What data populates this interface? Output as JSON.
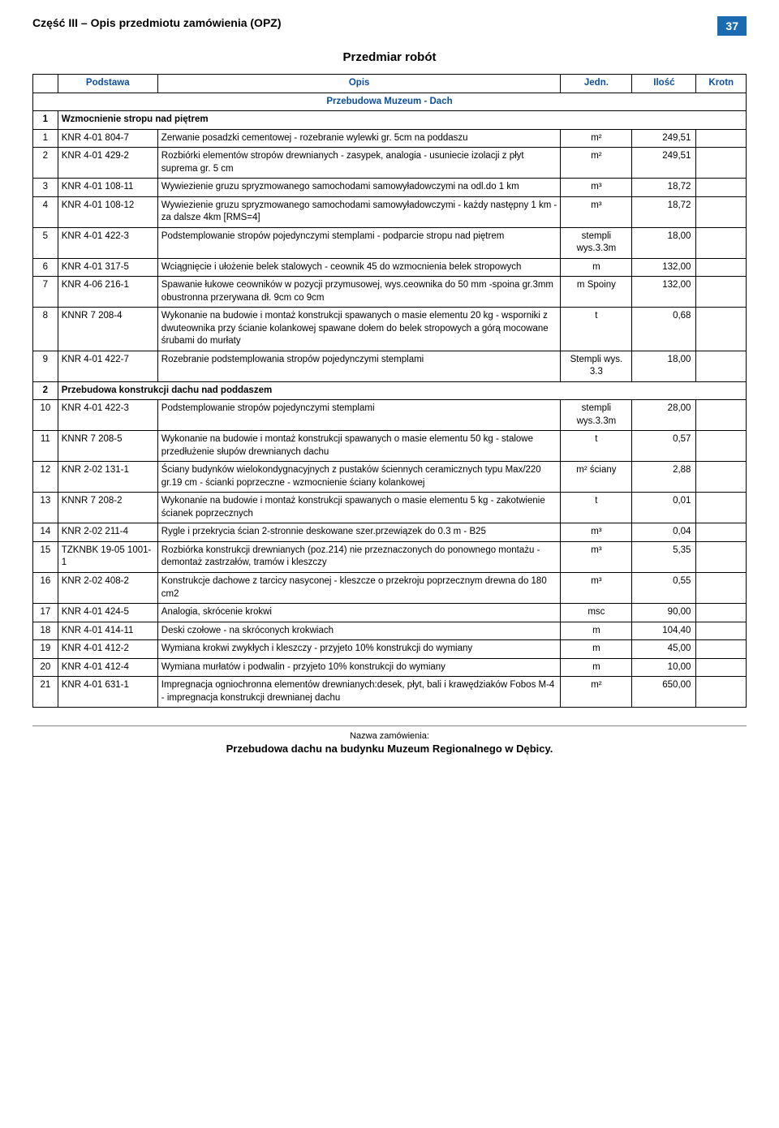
{
  "header": {
    "title": "Część III – Opis przedmiotu zamówienia (OPZ)",
    "page": "37"
  },
  "subtitle": "Przedmiar robót",
  "columns": {
    "podstawa": "Podstawa",
    "opis": "Opis",
    "jedn": "Jedn.",
    "ilosc": "Ilość",
    "krotn": "Krotn"
  },
  "main_section_title": "Przebudowa Muzeum - Dach",
  "sections": [
    {
      "num": "1",
      "title": "Wzmocnienie stropu nad piętrem",
      "rows": [
        {
          "n": "1",
          "code": "KNR 4-01 804-7",
          "desc": "Zerwanie posadzki cementowej - rozebranie wylewki gr. 5cm na poddaszu",
          "unit": "m²",
          "qty": "249,51"
        },
        {
          "n": "2",
          "code": "KNR 4-01 429-2",
          "desc": "Rozbiórki elementów stropów drewnianych - zasypek, analogia - usuniecie izolacji z płyt suprema gr. 5 cm",
          "unit": "m²",
          "qty": "249,51"
        },
        {
          "n": "3",
          "code": "KNR 4-01 108-11",
          "desc": "Wywiezienie gruzu spryzmowanego samochodami samowyładowczymi na odl.do 1 km",
          "unit": "m³",
          "qty": "18,72"
        },
        {
          "n": "4",
          "code": "KNR 4-01 108-12",
          "desc": "Wywiezienie gruzu spryzmowanego samochodami samowyładowczymi - każdy następny 1 km - za dalsze 4km [RMS=4]",
          "unit": "m³",
          "qty": "18,72"
        },
        {
          "n": "5",
          "code": "KNR 4-01 422-3",
          "desc": "Podstemplowanie stropów pojedynczymi stemplami - podparcie stropu  nad piętrem",
          "unit": "stempli wys.3.3m",
          "qty": "18,00"
        },
        {
          "n": "6",
          "code": "KNR 4-01 317-5",
          "desc": "Wciągnięcie i ułożenie belek stalowych - ceownik 45 do wzmocnienia belek stropowych",
          "unit": "m",
          "qty": "132,00"
        },
        {
          "n": "7",
          "code": "KNR 4-06  216-1",
          "desc": "Spawanie łukowe ceowników w pozycji przymusowej, wys.ceownika do 50 mm -spoina gr.3mm obustronna przerywana dł. 9cm co 9cm",
          "unit": "m Spoiny",
          "qty": "132,00"
        },
        {
          "n": "8",
          "code": "KNNR 7 208-4",
          "desc": "Wykonanie na budowie i montaż konstrukcji spawanych o masie elementu 20 kg - wsporniki  z dwuteownika przy ścianie kolankowej spawane dołem do belek stropowych a górą mocowane śrubami do murłaty",
          "unit": "t",
          "qty": "0,68"
        },
        {
          "n": "9",
          "code": "KNR 4-01 422-7",
          "desc": "Rozebranie podstemplowania stropów pojedynczymi stemplami",
          "unit": "Stempli wys. 3.3",
          "qty": "18,00"
        }
      ]
    },
    {
      "num": "2",
      "title": "Przebudowa konstrukcji dachu nad poddaszem",
      "rows": [
        {
          "n": "10",
          "code": "KNR 4-01 422-3",
          "desc": "Podstemplowanie stropów pojedynczymi stemplami",
          "unit": "stempli wys.3.3m",
          "qty": "28,00"
        },
        {
          "n": "11",
          "code": "KNNR 7 208-5",
          "desc": "Wykonanie na budowie i montaż konstrukcji spawanych o masie elementu 50 kg - stalowe przedłużenie słupów drewnianych dachu",
          "unit": "t",
          "qty": "0,57"
        },
        {
          "n": "12",
          "code": "KNR 2-02 131-1",
          "desc": "Ściany budynków wielokondygnacyjnych z pustaków ściennych ceramicznych typu Max/220 gr.19 cm - ścianki poprzeczne - wzmocnienie ściany kolankowej",
          "unit": "m² ściany",
          "qty": "2,88"
        },
        {
          "n": "13",
          "code": "KNNR 7 208-2",
          "desc": "Wykonanie na budowie i montaż konstrukcji spawanych o masie elementu 5 kg - zakotwienie ścianek poprzecznych",
          "unit": "t",
          "qty": "0,01"
        },
        {
          "n": "14",
          "code": "KNR 2-02 211-4",
          "desc": "Rygle i przekrycia ścian 2-stronnie deskowane szer.przewiązek do 0.3 m - B25",
          "unit": "m³",
          "qty": "0,04"
        },
        {
          "n": "15",
          "code": "TZKNBK 19-05 1001-1",
          "desc": "Rozbiórka konstrukcji drewnianych (poz.214) nie przeznaczonych do ponownego montażu - demontaż zastrzałów, tramów i kleszczy",
          "unit": "m³",
          "qty": "5,35"
        },
        {
          "n": "16",
          "code": "KNR 2-02 408-2",
          "desc": "Konstrukcje dachowe z tarcicy nasyconej - kleszcze o przekroju poprzecznym drewna do 180 cm2",
          "unit": "m³",
          "qty": "0,55"
        },
        {
          "n": "17",
          "code": "KNR 4-01 424-5",
          "desc": "Analogia, skrócenie krokwi",
          "unit": "msc",
          "qty": "90,00"
        },
        {
          "n": "18",
          "code": "KNR 4-01 414-11",
          "desc": "Deski czołowe - na skróconych krokwiach",
          "unit": "m",
          "qty": "104,40"
        },
        {
          "n": "19",
          "code": "KNR 4-01 412-2",
          "desc": "Wymiana krokwi zwykłych i kleszczy - przyjeto 10% konstrukcji do wymiany",
          "unit": "m",
          "qty": "45,00"
        },
        {
          "n": "20",
          "code": "KNR 4-01 412-4",
          "desc": "Wymiana murłatów i podwalin - przyjeto 10% konstrukcji do wymiany",
          "unit": "m",
          "qty": "10,00"
        },
        {
          "n": "21",
          "code": "KNR 4-01 631-1",
          "desc": "Impregnacja ogniochronna elementów drewnianych:desek, płyt, bali i krawędziaków  Fobos M-4 - impregnacja konstrukcji drewnianej dachu",
          "unit": "m²",
          "qty": "650,00"
        }
      ]
    }
  ],
  "footer": {
    "label": "Nazwa zamówienia:",
    "title": "Przebudowa dachu na budynku Muzeum Regionalnego w Dębicy."
  }
}
